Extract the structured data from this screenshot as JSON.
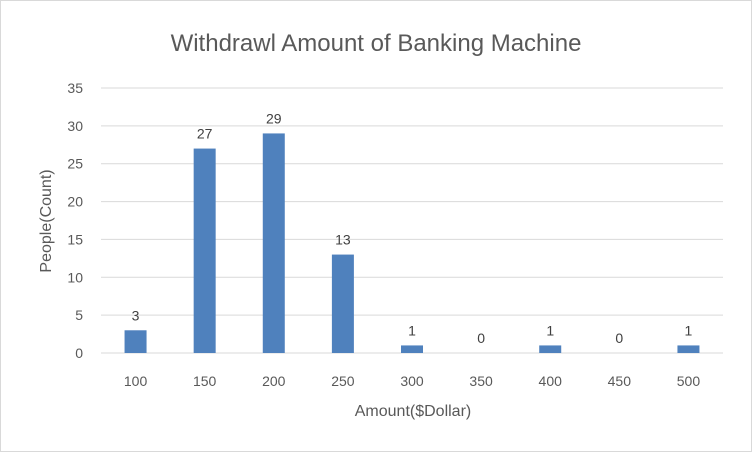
{
  "chart_data": {
    "type": "bar",
    "title": "Withdrawl Amount of Banking Machine",
    "xlabel": "Amount($Dollar)",
    "ylabel": "People(Count)",
    "categories": [
      "100",
      "150",
      "200",
      "250",
      "300",
      "350",
      "400",
      "450",
      "500"
    ],
    "values": [
      3,
      27,
      29,
      13,
      1,
      0,
      1,
      0,
      1
    ],
    "ylim": [
      0,
      35
    ],
    "yticks": [
      0,
      5,
      10,
      15,
      20,
      25,
      30,
      35
    ],
    "grid": true,
    "legend": "none",
    "bar_color": "#4f81bd",
    "grid_color": "#d9d9d9"
  }
}
